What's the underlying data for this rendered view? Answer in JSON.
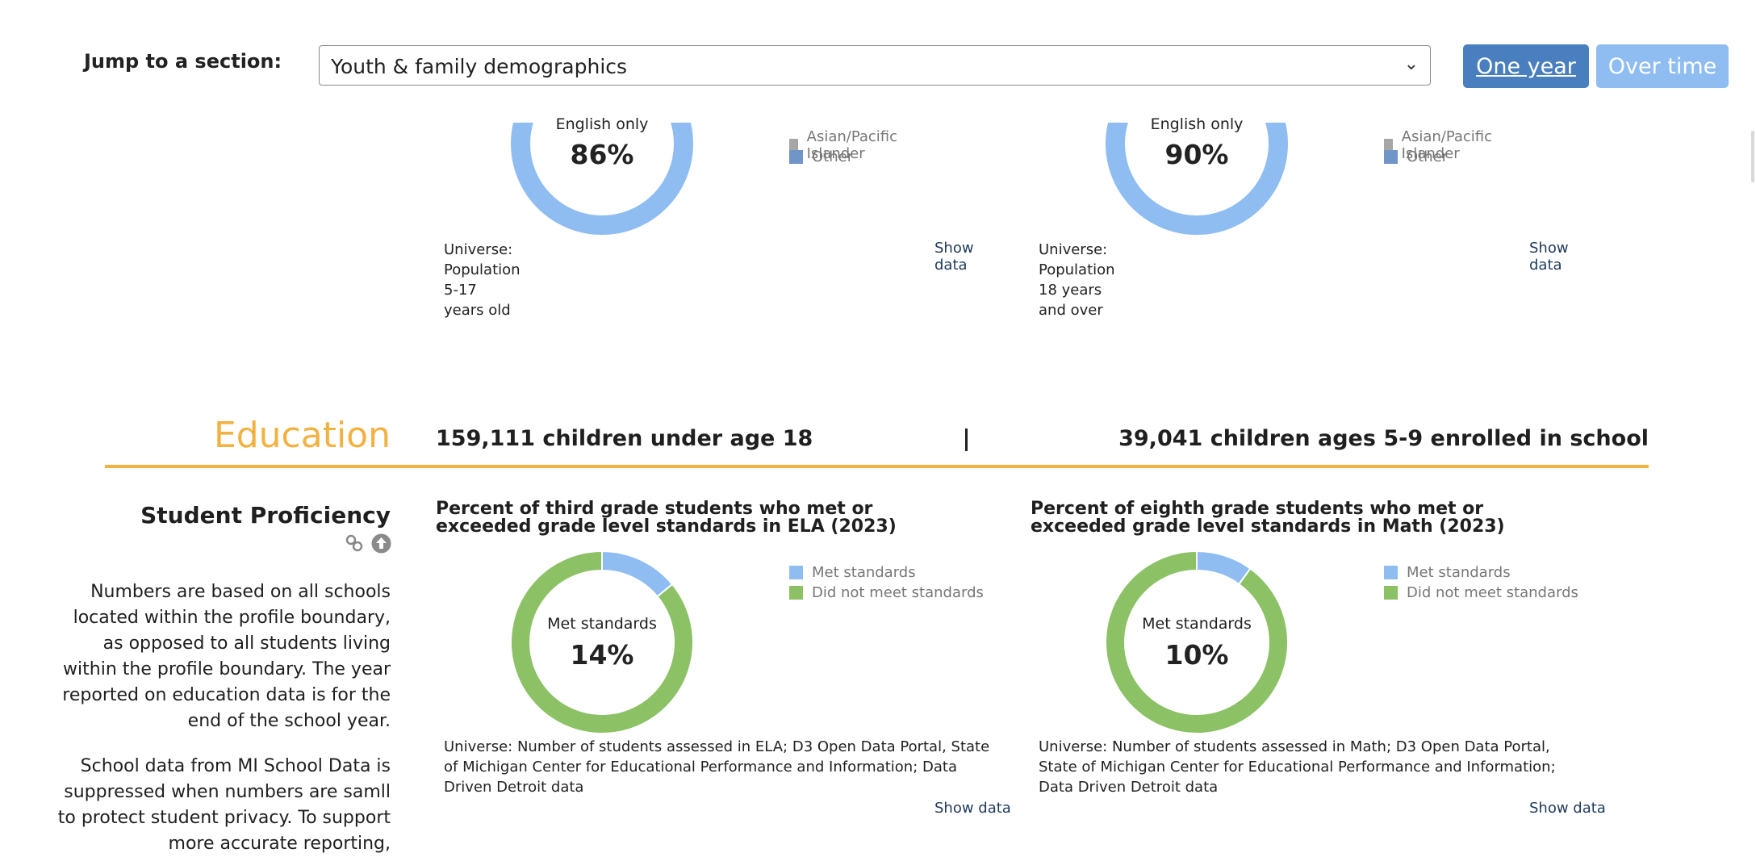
{
  "nav": {
    "jump_label": "Jump to a section:",
    "section_value": "Youth & family demographics",
    "btn_one_year": "One year",
    "btn_over_time": "Over time"
  },
  "top_charts": [
    {
      "center_label": "English only",
      "center_pct": "86%",
      "legend": [
        {
          "label": "Asian/Pacific Islander",
          "color": "#a6a6a6"
        },
        {
          "label": "Other",
          "color": "#6f95c9"
        }
      ],
      "universe": "Universe: Population 5-17 years old",
      "show_data": "Show data"
    },
    {
      "center_label": "English only",
      "center_pct": "90%",
      "legend": [
        {
          "label": "Asian/Pacific Islander",
          "color": "#a6a6a6"
        },
        {
          "label": "Other",
          "color": "#6f95c9"
        }
      ],
      "universe": "Universe: Population 18 years and over",
      "show_data": "Show data"
    }
  ],
  "education": {
    "title": "Education",
    "stat_left": "159,111 children under age 18",
    "stat_right": "39,041 children ages 5-9 enrolled in school",
    "section_title": "Student Proficiency",
    "para1": "Numbers are based on all schools located within the profile boundary, as opposed to all students living within the profile boundary. The year reported on education data is for the end of the school year.",
    "para2": "School data from MI School Data is suppressed when numbers are samll to protect student privacy. To support more accurate reporting,",
    "charts": [
      {
        "title": "Percent of third grade students who met or exceeded grade level standards in ELA (2023)",
        "center_label": "Met standards",
        "center_pct": "14%",
        "legend": [
          {
            "label": "Met standards",
            "color": "#8fbdf2"
          },
          {
            "label": "Did not meet standards",
            "color": "#8cc165"
          }
        ],
        "universe": "Universe: Number of students assessed in ELA; D3 Open Data Portal, State of Michigan Center for Educational Performance and Information; Data Driven Detroit data",
        "show_data": "Show data"
      },
      {
        "title": "Percent of eighth grade students who met or exceeded grade level standards in Math (2023)",
        "center_label": "Met standards",
        "center_pct": "10%",
        "legend": [
          {
            "label": "Met standards",
            "color": "#8fbdf2"
          },
          {
            "label": "Did not meet standards",
            "color": "#8cc165"
          }
        ],
        "universe": "Universe: Number of students assessed in Math; D3 Open Data Portal, State of Michigan Center for Educational Performance and Information; Data Driven Detroit data",
        "show_data": "Show data"
      }
    ]
  },
  "chart_data": [
    {
      "type": "pie",
      "categories": [
        "English only",
        "Other"
      ],
      "values": [
        86,
        14
      ]
    },
    {
      "type": "pie",
      "categories": [
        "English only",
        "Other"
      ],
      "values": [
        90,
        10
      ]
    },
    {
      "type": "pie",
      "title": "Percent of third grade students who met or exceeded grade level standards in ELA (2023)",
      "categories": [
        "Met standards",
        "Did not meet standards"
      ],
      "values": [
        14,
        86
      ]
    },
    {
      "type": "pie",
      "title": "Percent of eighth grade students who met or exceeded grade level standards in Math (2023)",
      "categories": [
        "Met standards",
        "Did not meet standards"
      ],
      "values": [
        10,
        90
      ]
    }
  ]
}
